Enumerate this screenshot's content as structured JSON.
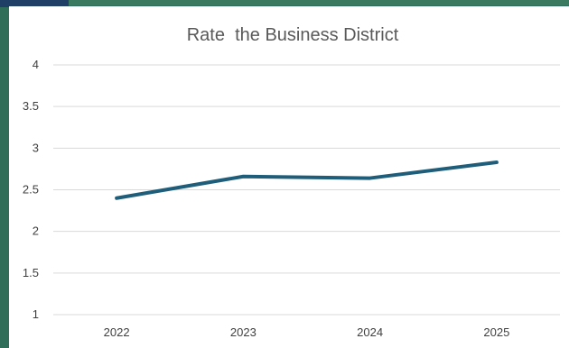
{
  "chart_data": {
    "type": "line",
    "title": "Rate  the Business District",
    "categories": [
      "2022",
      "2023",
      "2024",
      "2025"
    ],
    "series": [
      {
        "values": [
          2.4,
          2.66,
          2.64,
          2.83
        ]
      }
    ],
    "ylim": [
      1,
      4
    ],
    "yticks": [
      "1",
      "1.5",
      "2",
      "2.5",
      "3",
      "3.5",
      "4"
    ],
    "grid": true,
    "legend": "none",
    "colors": {
      "line": "#1f5e7a",
      "grid": "#d9d9d9",
      "background": "#ffffff",
      "frame": "#2f6e58"
    }
  }
}
